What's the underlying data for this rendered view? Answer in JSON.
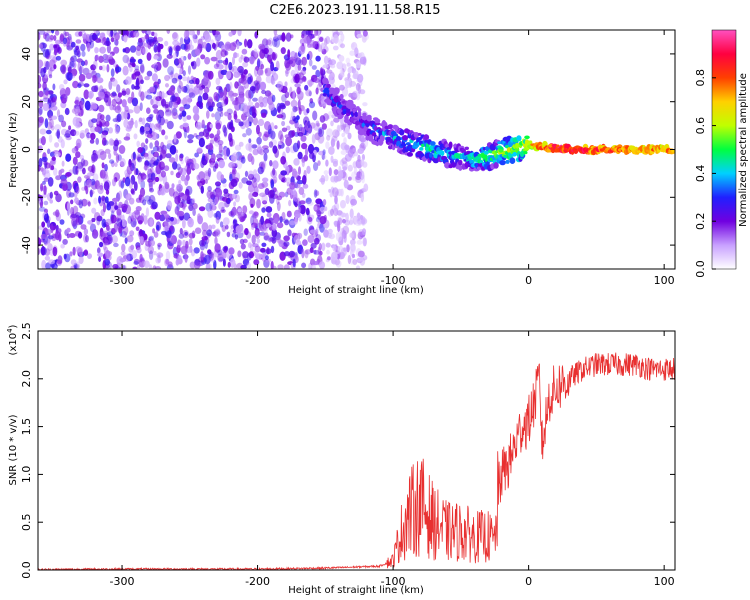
{
  "title": "C2E6.2023.191.11.58.R15",
  "chart_data": [
    {
      "type": "heatmap",
      "xlabel": "Height of straight line (km)",
      "ylabel": "Frequency (Hz)",
      "xlim": [
        -362,
        108
      ],
      "ylim": [
        -50,
        50
      ],
      "x_ticks": [
        -300,
        -200,
        -100,
        0,
        100
      ],
      "y_ticks": [
        -40,
        -20,
        0,
        20,
        40
      ],
      "colorbar": {
        "label": "Normalized spectral amplitude",
        "range": [
          0,
          1
        ],
        "ticks": [
          "0.0",
          "0.2",
          "0.4",
          "0.6",
          "0.8"
        ],
        "colors": [
          "#ffffff",
          "#c8a0ff",
          "#7000e0",
          "#2020ff",
          "#00d0ff",
          "#00ff40",
          "#c0ff00",
          "#ffd000",
          "#ff4000",
          "#ff0040",
          "#ff50c0"
        ]
      },
      "features": {
        "noise_region_x": [
          -362,
          -150
        ],
        "ridge": {
          "x": [
            -150,
            -140,
            -130,
            -120,
            -110,
            -100,
            -90,
            -80,
            -70,
            -60,
            -50,
            -40,
            -30,
            -20,
            -10,
            0,
            20,
            40,
            60,
            80,
            100,
            108
          ],
          "freq": [
            25,
            19,
            14,
            10,
            7,
            5,
            3,
            1.5,
            0,
            -2,
            -3,
            -4,
            -3,
            -1,
            0,
            2,
            0.5,
            0,
            0,
            0,
            0,
            0
          ],
          "amplitude": [
            0.3,
            0.3,
            0.25,
            0.3,
            0.35,
            0.35,
            0.4,
            0.45,
            0.45,
            0.4,
            0.4,
            0.45,
            0.5,
            0.55,
            0.6,
            0.65,
            0.9,
            0.85,
            0.8,
            0.75,
            0.75,
            0.75
          ]
        }
      }
    },
    {
      "type": "line",
      "xlabel": "Height of straight line (km)",
      "ylabel": "SNR (10 * v/v)",
      "y_multiplier": "(x10",
      "y_multiplier_exp": "4",
      "y_multiplier_close": ")",
      "xlim": [
        -362,
        108
      ],
      "ylim": [
        0,
        2.5
      ],
      "x_ticks": [
        -300,
        -200,
        -100,
        0,
        100
      ],
      "y_ticks": [
        "0.0",
        "0.5",
        "1.0",
        "1.5",
        "2.0",
        "2.5"
      ],
      "line_color": "#e83030",
      "series": [
        {
          "x": [
            -362,
            -300,
            -200,
            -150,
            -110,
            -100,
            -95,
            -90,
            -80,
            -70,
            -60,
            -50,
            -40,
            -30,
            -25,
            -22,
            -20,
            -15,
            -10,
            -5,
            0,
            5,
            8,
            10,
            15,
            20,
            30,
            40,
            50,
            60,
            70,
            80,
            90,
            100,
            108
          ],
          "y": [
            0.005,
            0.01,
            0.01,
            0.02,
            0.04,
            0.1,
            0.35,
            0.55,
            0.7,
            0.5,
            0.4,
            0.4,
            0.35,
            0.35,
            0.3,
            0.85,
            1.0,
            1.1,
            1.3,
            1.5,
            1.55,
            1.8,
            2.0,
            1.3,
            1.8,
            1.9,
            2.0,
            2.1,
            2.15,
            2.15,
            2.15,
            2.15,
            2.1,
            2.1,
            2.1
          ]
        }
      ]
    }
  ]
}
